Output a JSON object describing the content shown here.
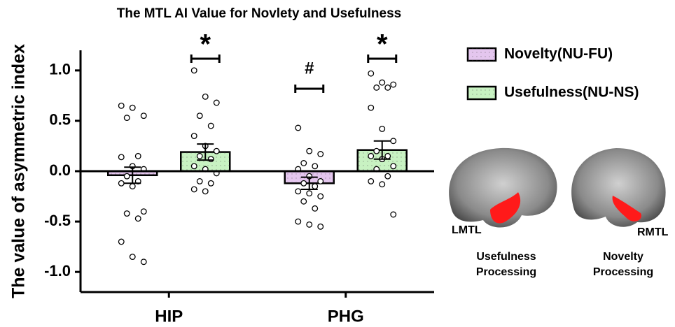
{
  "chart_data": {
    "type": "bar_scatter",
    "title": "The MTL AI Value for Novlety and Usefulness",
    "y_label": "The value of asymmetric index",
    "categories": [
      "HIP",
      "PHG"
    ],
    "series": [
      {
        "name": "Novelty(NU-FU)",
        "color": "#e4c6ee",
        "values": [
          -0.04,
          -0.12
        ],
        "errors": [
          0.08,
          0.06
        ],
        "markers": [
          null,
          "#"
        ],
        "points": [
          [
            0.65,
            0.63,
            0.55,
            0.53,
            0.15,
            0.14,
            0.05,
            0.02,
            -0.05,
            -0.1,
            -0.12,
            -0.15,
            -0.4,
            -0.42,
            -0.47,
            -0.7,
            -0.85,
            -0.9
          ],
          [
            0.43,
            0.2,
            0.17,
            0.08,
            0.05,
            0.02,
            -0.05,
            -0.1,
            -0.12,
            -0.15,
            -0.2,
            -0.22,
            -0.25,
            -0.3,
            -0.37,
            -0.5,
            -0.53,
            -0.55
          ]
        ]
      },
      {
        "name": "Usefulness(NU-NS)",
        "color": "#c8f2c2",
        "values": [
          0.19,
          0.21
        ],
        "errors": [
          0.08,
          0.09
        ],
        "markers": [
          "*",
          "*"
        ],
        "points": [
          [
            1.0,
            0.74,
            0.68,
            0.55,
            0.45,
            0.35,
            0.25,
            0.2,
            0.15,
            0.12,
            0.05,
            0.02,
            -0.02,
            -0.1,
            -0.12,
            -0.18,
            -0.2
          ],
          [
            0.97,
            0.88,
            0.86,
            0.83,
            0.83,
            0.63,
            0.42,
            0.3,
            0.2,
            0.15,
            0.15,
            0.12,
            0.05,
            0.02,
            -0.05,
            -0.1,
            -0.13,
            -0.43
          ]
        ]
      }
    ],
    "ylim": [
      -1.2,
      1.2
    ],
    "yticks": [
      {
        "value": 1,
        "label": "1.0"
      },
      0.5,
      {
        "value": 0,
        "label": "0.0"
      },
      -0.5,
      {
        "value": -1,
        "label": "-1.0"
      }
    ],
    "legend": "top-right",
    "brain_panels": [
      {
        "label": "LMTL",
        "caption": [
          "Usefulness",
          "Processing"
        ]
      },
      {
        "label": "RMTL",
        "caption": [
          "Novelty",
          "Processing"
        ]
      }
    ]
  }
}
